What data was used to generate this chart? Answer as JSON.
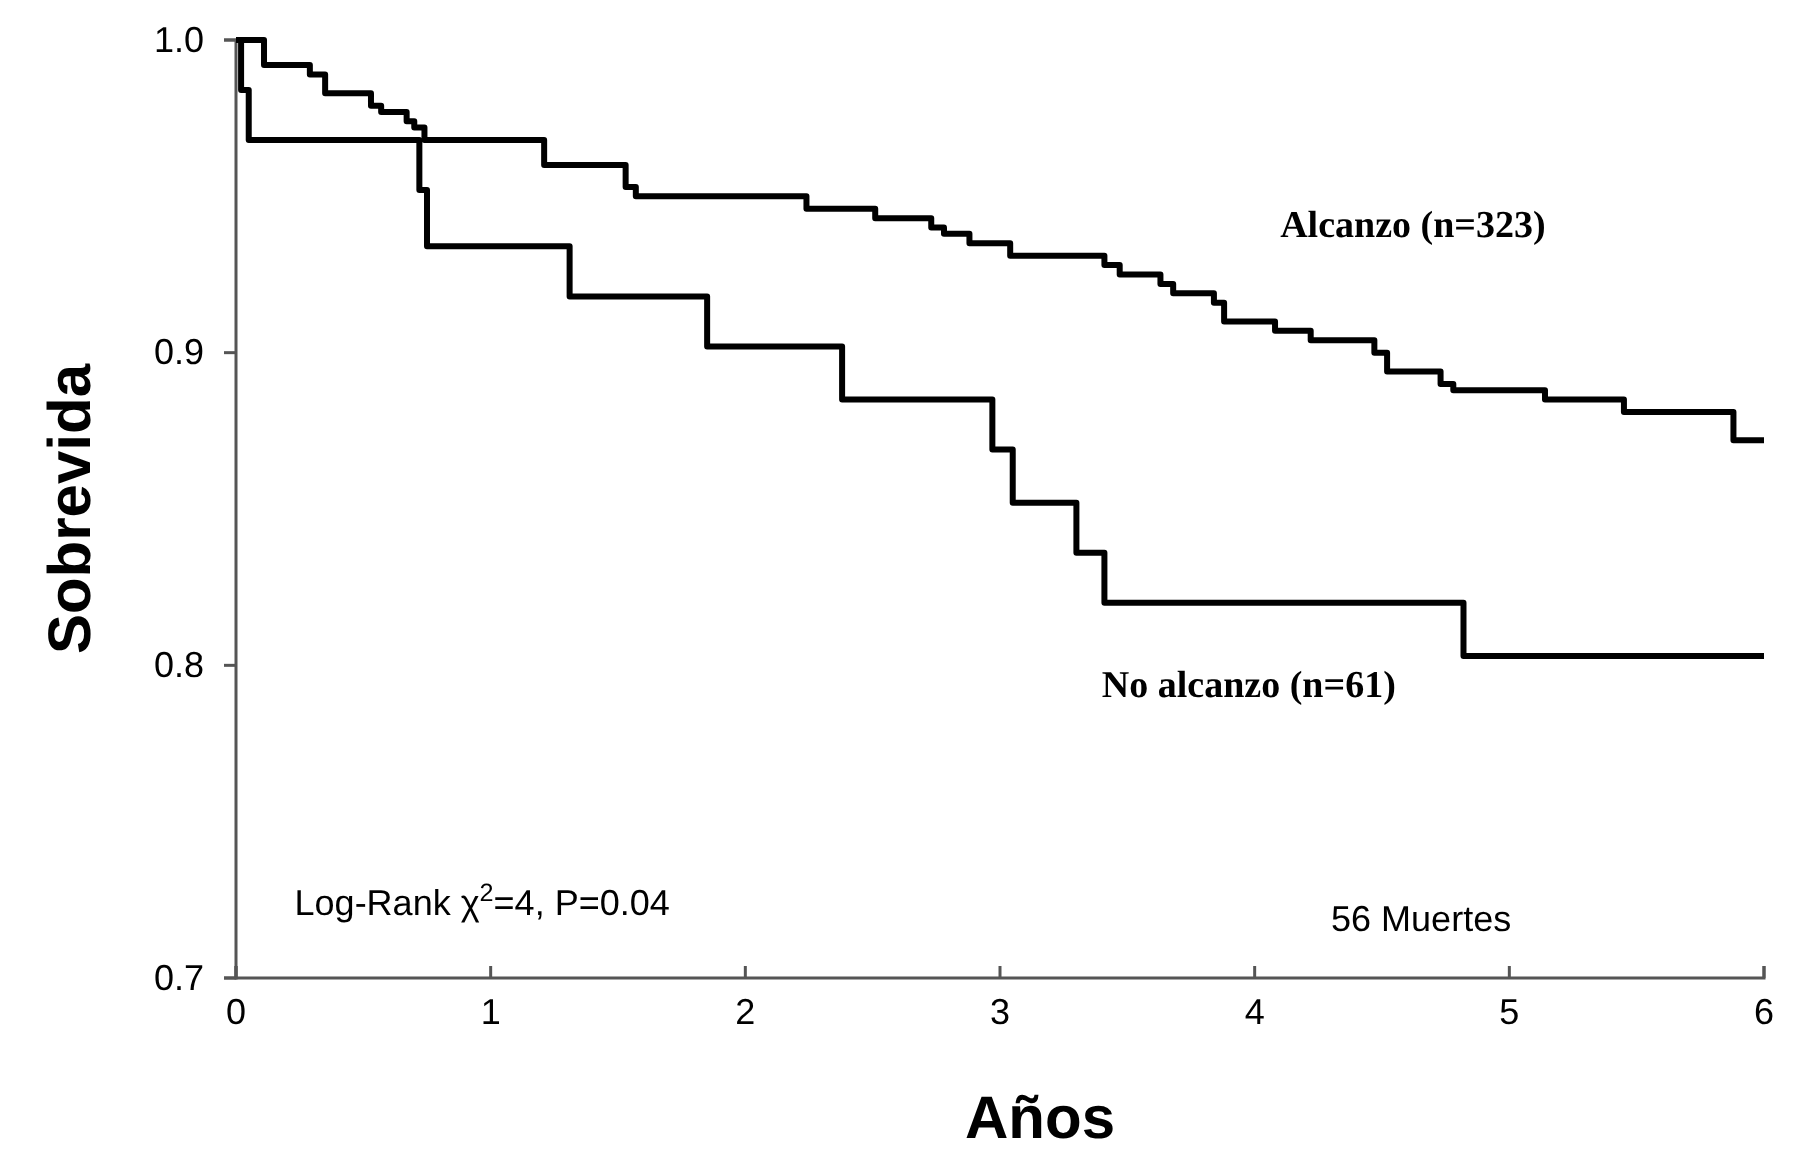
{
  "chart_data": {
    "type": "step",
    "xlabel": "Años",
    "ylabel": "Sobrevida",
    "xlim": [
      0,
      6
    ],
    "xticks": [
      0,
      1,
      2,
      3,
      4,
      5,
      6
    ],
    "ylim": [
      0.7,
      1.0
    ],
    "yticks": [
      {
        "value": 0.7,
        "label": "0.7"
      },
      {
        "value": 0.8,
        "label": "0.8"
      },
      {
        "value": 0.9,
        "label": "0.9"
      },
      {
        "value": 1.0,
        "label": "1.0"
      }
    ],
    "grid": false,
    "legend": false,
    "line_style": "solid",
    "marker": "none",
    "series": [
      {
        "name": "Alcanzo (n=323)",
        "color": "#000000",
        "x": [
          0,
          0.11,
          0.29,
          0.35,
          0.53,
          0.57,
          0.67,
          0.7,
          0.74,
          1.21,
          1.53,
          1.57,
          2.24,
          2.51,
          2.73,
          2.78,
          2.88,
          3.04,
          3.41,
          3.47,
          3.63,
          3.68,
          3.84,
          3.88,
          4.08,
          4.22,
          4.47,
          4.52,
          4.73,
          4.78,
          5.14,
          5.45,
          5.88,
          6
        ],
        "values": [
          1.0,
          0.992,
          0.989,
          0.983,
          0.979,
          0.977,
          0.974,
          0.972,
          0.968,
          0.96,
          0.953,
          0.95,
          0.946,
          0.943,
          0.94,
          0.938,
          0.935,
          0.931,
          0.928,
          0.925,
          0.922,
          0.919,
          0.916,
          0.91,
          0.907,
          0.904,
          0.9,
          0.894,
          0.89,
          0.888,
          0.885,
          0.881,
          0.872,
          0.872
        ]
      },
      {
        "name": "No alcanzo (n=61)",
        "color": "#000000",
        "x": [
          0,
          0.02,
          0.05,
          0.72,
          0.75,
          1.31,
          1.85,
          2.38,
          2.97,
          3.05,
          3.3,
          3.41,
          4.82,
          6
        ],
        "values": [
          1.0,
          0.984,
          0.968,
          0.952,
          0.934,
          0.918,
          0.902,
          0.885,
          0.869,
          0.852,
          0.836,
          0.82,
          0.803,
          0.803
        ]
      }
    ],
    "annotations": [
      "Log-Rank χ$^{2}$=4, P=0.04",
      "56 Muertes"
    ]
  }
}
